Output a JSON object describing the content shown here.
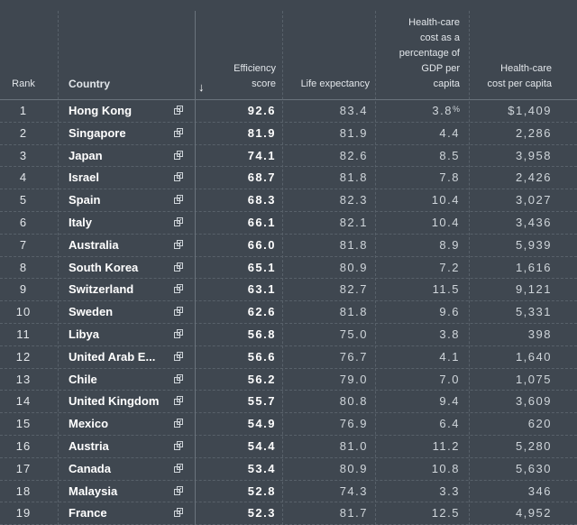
{
  "columns": {
    "rank": "Rank",
    "country": "Country",
    "efficiency": "Efficiency\nscore",
    "life": "Life expectancy",
    "pct_gdp": "Health-care\ncost as a\npercentage of\nGDP per\ncapita",
    "cost": "Health-care\ncost per capita"
  },
  "sort_icon": "down-arrow-icon",
  "external_icon": "open-in-new-icon",
  "rows": [
    {
      "rank": "1",
      "country": "Hong Kong",
      "efficiency": "92.6",
      "life": "83.4",
      "pct": "3.8",
      "pct_suffix": "%",
      "cost": "$1,409"
    },
    {
      "rank": "2",
      "country": "Singapore",
      "efficiency": "81.9",
      "life": "81.9",
      "pct": "4.4",
      "pct_suffix": "",
      "cost": "2,286"
    },
    {
      "rank": "3",
      "country": "Japan",
      "efficiency": "74.1",
      "life": "82.6",
      "pct": "8.5",
      "pct_suffix": "",
      "cost": "3,958"
    },
    {
      "rank": "4",
      "country": "Israel",
      "efficiency": "68.7",
      "life": "81.8",
      "pct": "7.8",
      "pct_suffix": "",
      "cost": "2,426"
    },
    {
      "rank": "5",
      "country": "Spain",
      "efficiency": "68.3",
      "life": "82.3",
      "pct": "10.4",
      "pct_suffix": "",
      "cost": "3,027"
    },
    {
      "rank": "6",
      "country": "Italy",
      "efficiency": "66.1",
      "life": "82.1",
      "pct": "10.4",
      "pct_suffix": "",
      "cost": "3,436"
    },
    {
      "rank": "7",
      "country": "Australia",
      "efficiency": "66.0",
      "life": "81.8",
      "pct": "8.9",
      "pct_suffix": "",
      "cost": "5,939"
    },
    {
      "rank": "8",
      "country": "South Korea",
      "efficiency": "65.1",
      "life": "80.9",
      "pct": "7.2",
      "pct_suffix": "",
      "cost": "1,616"
    },
    {
      "rank": "9",
      "country": "Switzerland",
      "efficiency": "63.1",
      "life": "82.7",
      "pct": "11.5",
      "pct_suffix": "",
      "cost": "9,121"
    },
    {
      "rank": "10",
      "country": "Sweden",
      "efficiency": "62.6",
      "life": "81.8",
      "pct": "9.6",
      "pct_suffix": "",
      "cost": "5,331"
    },
    {
      "rank": "11",
      "country": "Libya",
      "efficiency": "56.8",
      "life": "75.0",
      "pct": "3.8",
      "pct_suffix": "",
      "cost": "398"
    },
    {
      "rank": "12",
      "country": "United Arab E...",
      "efficiency": "56.6",
      "life": "76.7",
      "pct": "4.1",
      "pct_suffix": "",
      "cost": "1,640"
    },
    {
      "rank": "13",
      "country": "Chile",
      "efficiency": "56.2",
      "life": "79.0",
      "pct": "7.0",
      "pct_suffix": "",
      "cost": "1,075"
    },
    {
      "rank": "14",
      "country": "United Kingdom",
      "efficiency": "55.7",
      "life": "80.8",
      "pct": "9.4",
      "pct_suffix": "",
      "cost": "3,609"
    },
    {
      "rank": "15",
      "country": "Mexico",
      "efficiency": "54.9",
      "life": "76.9",
      "pct": "6.4",
      "pct_suffix": "",
      "cost": "620"
    },
    {
      "rank": "16",
      "country": "Austria",
      "efficiency": "54.4",
      "life": "81.0",
      "pct": "11.2",
      "pct_suffix": "",
      "cost": "5,280"
    },
    {
      "rank": "17",
      "country": "Canada",
      "efficiency": "53.4",
      "life": "80.9",
      "pct": "10.8",
      "pct_suffix": "",
      "cost": "5,630"
    },
    {
      "rank": "18",
      "country": "Malaysia",
      "efficiency": "52.8",
      "life": "74.3",
      "pct": "3.3",
      "pct_suffix": "",
      "cost": "346"
    },
    {
      "rank": "19",
      "country": "France",
      "efficiency": "52.3",
      "life": "81.7",
      "pct": "12.5",
      "pct_suffix": "",
      "cost": "4,952"
    }
  ]
}
